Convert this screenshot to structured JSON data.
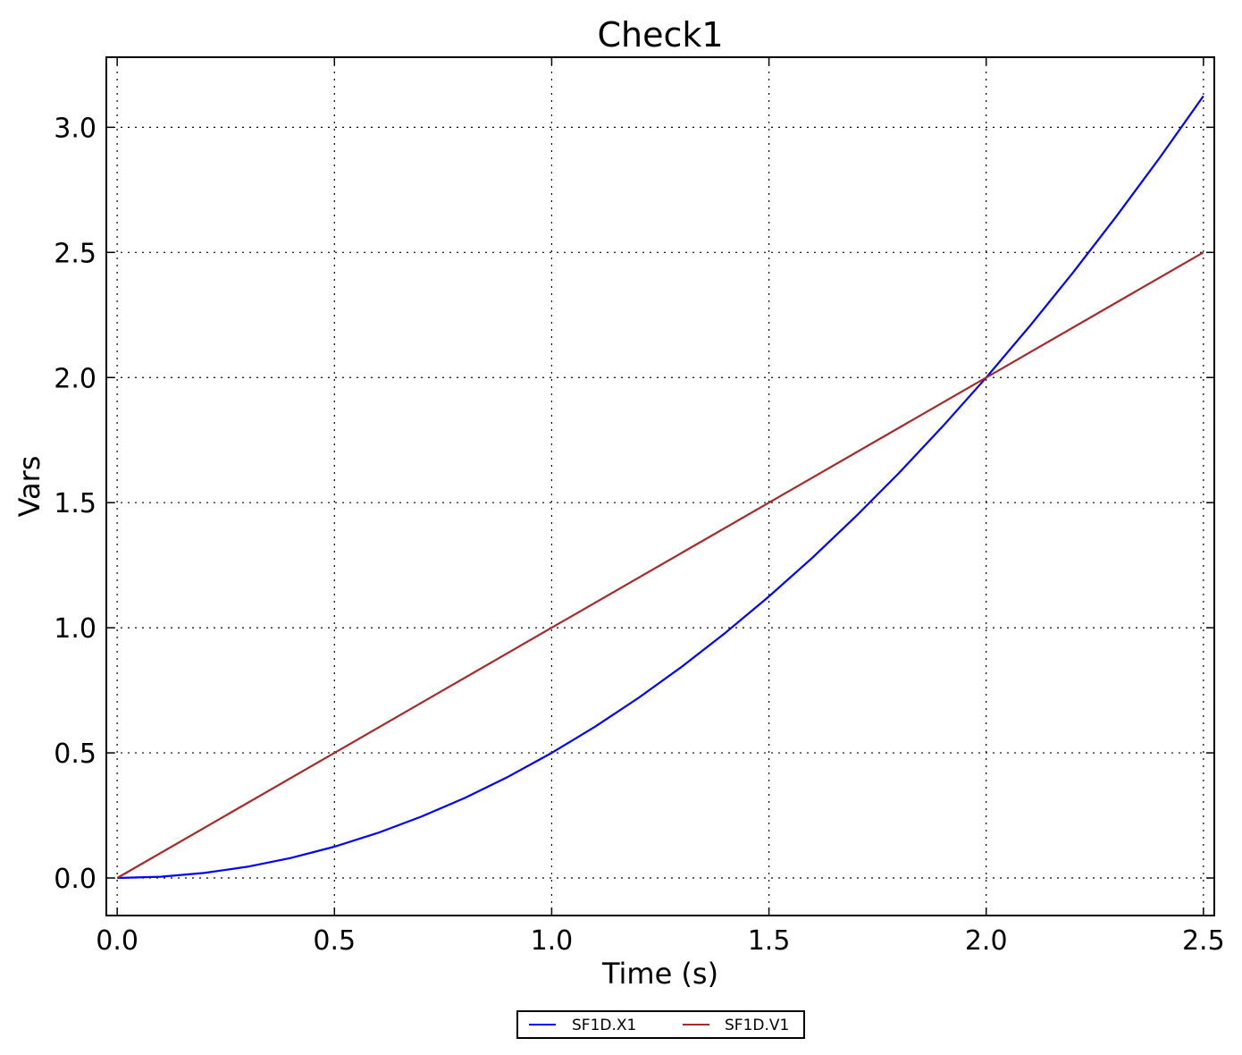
{
  "chart_data": {
    "type": "line",
    "title": "Check1",
    "xlabel": "Time (s)",
    "ylabel": "Vars",
    "xlim": [
      -0.025,
      2.525
    ],
    "ylim": [
      -0.15,
      3.28
    ],
    "x_ticks": [
      0.0,
      0.5,
      1.0,
      1.5,
      2.0,
      2.5
    ],
    "x_tick_labels": [
      "0.0",
      "0.5",
      "1.0",
      "1.5",
      "2.0",
      "2.5"
    ],
    "y_ticks": [
      0.0,
      0.5,
      1.0,
      1.5,
      2.0,
      2.5,
      3.0
    ],
    "y_tick_labels": [
      "0.0",
      "0.5",
      "1.0",
      "1.5",
      "2.0",
      "2.5",
      "3.0"
    ],
    "grid": true,
    "legend_position": "bottom-center",
    "series": [
      {
        "name": "SF1D.X1",
        "color": "#0000ff",
        "x": [
          0.0,
          0.1,
          0.2,
          0.3,
          0.4,
          0.5,
          0.6,
          0.7,
          0.8,
          0.9,
          1.0,
          1.1,
          1.2,
          1.3,
          1.4,
          1.5,
          1.6,
          1.7,
          1.8,
          1.9,
          2.0,
          2.1,
          2.2,
          2.3,
          2.4,
          2.5
        ],
        "y": [
          0.0,
          0.005,
          0.02,
          0.045,
          0.08,
          0.125,
          0.18,
          0.245,
          0.32,
          0.405,
          0.5,
          0.605,
          0.72,
          0.845,
          0.98,
          1.125,
          1.28,
          1.445,
          1.62,
          1.805,
          2.0,
          2.205,
          2.42,
          2.645,
          2.88,
          3.125
        ]
      },
      {
        "name": "SF1D.V1",
        "color": "#a52a2a",
        "x": [
          0.0,
          0.5,
          1.0,
          1.5,
          2.0,
          2.5
        ],
        "y": [
          0.0,
          0.5,
          1.0,
          1.5,
          2.0,
          2.5
        ]
      }
    ]
  }
}
